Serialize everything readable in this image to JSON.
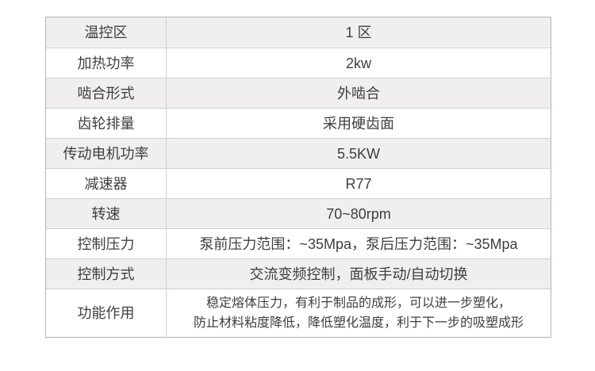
{
  "page": {
    "background_color": "#ffffff"
  },
  "spec_table": {
    "stripe_color": "#f0eeee",
    "border_color": "#c6c3c1",
    "text_color": "#3e3e3e",
    "rows": [
      {
        "label": "温控区",
        "value": "1 区"
      },
      {
        "label": "加热功率",
        "value": "2kw"
      },
      {
        "label": "啮合形式",
        "value": "外啮合"
      },
      {
        "label": "齿轮排量",
        "value": "采用硬齿面"
      },
      {
        "label": "传动电机功率",
        "value": "5.5KW"
      },
      {
        "label": "减速器",
        "value": "R77"
      },
      {
        "label": "转速",
        "value": "70~80rpm"
      },
      {
        "label": "控制压力",
        "value": "泵前压力范围：~35Mpa，泵后压力范围：~35Mpa"
      },
      {
        "label": "控制方式",
        "value": "交流变频控制，面板手动/自动切换"
      },
      {
        "label": "功能作用",
        "value": "稳定熔体压力，有利于制品的成形，可以进一步塑化，\n防止材料粘度降低，降低塑化温度，利于下一步的吸塑成形"
      }
    ]
  }
}
